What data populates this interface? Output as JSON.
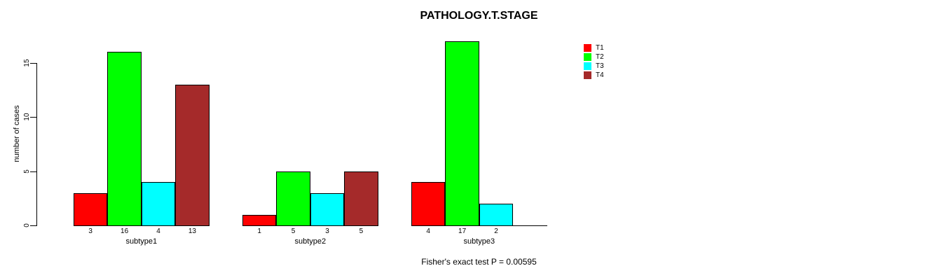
{
  "chart_data": {
    "type": "bar",
    "title": "PATHOLOGY.T.STAGE",
    "ylabel": "number of cases",
    "xlabel": "",
    "ylim": [
      0,
      17
    ],
    "yticks": [
      0,
      5,
      10,
      15
    ],
    "grid": false,
    "legend_position": "right",
    "categories": [
      "subtype1",
      "subtype2",
      "subtype3"
    ],
    "series": [
      {
        "name": "T1",
        "color": "#FF0000",
        "values": [
          3,
          1,
          4
        ]
      },
      {
        "name": "T2",
        "color": "#00FF00",
        "values": [
          16,
          5,
          17
        ]
      },
      {
        "name": "T3",
        "color": "#00FFFF",
        "values": [
          4,
          3,
          2
        ]
      },
      {
        "name": "T4",
        "color": "#A52A2A",
        "values": [
          13,
          5,
          0
        ]
      }
    ],
    "bar_value_labels": {
      "subtype1": [
        "3",
        "16",
        "4",
        "13"
      ],
      "subtype2": [
        "1",
        "5",
        "3",
        "5"
      ],
      "subtype3": [
        "4",
        "17",
        "2",
        ""
      ]
    },
    "footnote": "Fisher's exact test P = 0.00595",
    "axis_color": "#000000"
  }
}
